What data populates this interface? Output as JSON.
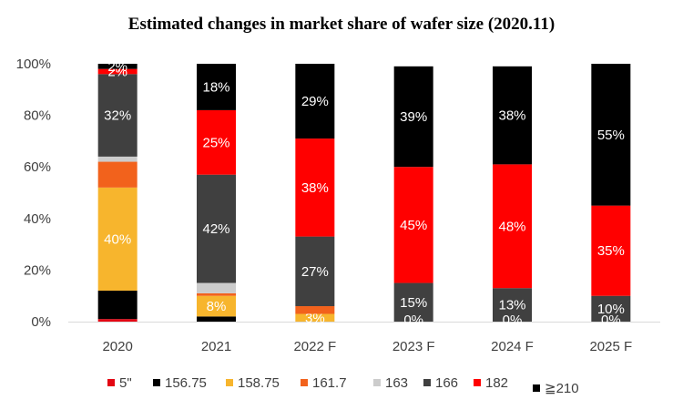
{
  "chart_data": {
    "type": "bar",
    "stacked": true,
    "title": "Estimated changes in market share of wafer size (2020.11)",
    "xlabel": "",
    "ylabel": "",
    "ylim": [
      0,
      100
    ],
    "yticks": [
      "0%",
      "20%",
      "40%",
      "60%",
      "80%",
      "100%"
    ],
    "categories": [
      "2020",
      "2021",
      "2022 F",
      "2023 F",
      "2024 F",
      "2025 F"
    ],
    "grid": false,
    "legend_position": "bottom",
    "series": [
      {
        "name": "5\"",
        "color": "#e30613",
        "values": [
          1,
          0,
          0,
          0,
          0,
          0
        ],
        "labels": [
          "",
          "",
          "",
          "",
          "",
          ""
        ]
      },
      {
        "name": "156.75",
        "color": "#000000",
        "values": [
          11,
          2,
          0,
          0,
          0,
          0
        ],
        "labels": [
          "",
          "",
          "",
          "",
          "",
          ""
        ]
      },
      {
        "name": "158.75",
        "color": "#f7b52d",
        "values": [
          40,
          8,
          3,
          0,
          0,
          0
        ],
        "labels": [
          "40%",
          "8%",
          "3%",
          "",
          "",
          ""
        ]
      },
      {
        "name": "161.7",
        "color": "#f2621c",
        "values": [
          10,
          1,
          3,
          0,
          0,
          0
        ],
        "labels": [
          "",
          "",
          "",
          "",
          "",
          ""
        ]
      },
      {
        "name": "163",
        "color": "#cccccc",
        "values": [
          2,
          4,
          0,
          0,
          0,
          0
        ],
        "labels": [
          "",
          "",
          "",
          "",
          "",
          ""
        ]
      },
      {
        "name": "166",
        "color": "#404040",
        "values": [
          32,
          42,
          27,
          15,
          13,
          10
        ],
        "labels": [
          "32%",
          "42%",
          "27%",
          "15%",
          "13%",
          "10%"
        ]
      },
      {
        "name": "182",
        "color": "#ff0000",
        "values": [
          2,
          25,
          38,
          45,
          48,
          35
        ],
        "labels": [
          "2%",
          "25%",
          "38%",
          "45%",
          "48%",
          "35%"
        ]
      },
      {
        "name": "≧210",
        "color": "#000000",
        "values": [
          2,
          18,
          29,
          39,
          38,
          55
        ],
        "labels": [
          "2%",
          "18%",
          "29%",
          "39%",
          "38%",
          "55%"
        ]
      }
    ],
    "zero_labels": [
      "",
      "",
      "",
      "0%",
      "0%",
      "0%"
    ]
  }
}
